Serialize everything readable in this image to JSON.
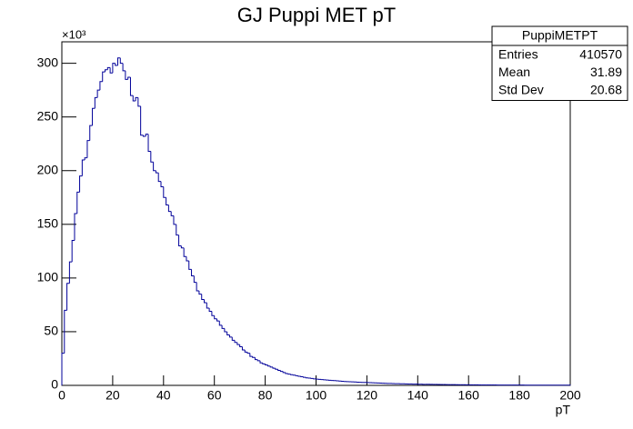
{
  "chart_data": {
    "type": "histogram",
    "title": "GJ Puppi MET pT",
    "xlabel": "pT",
    "y_multiplier": "×10³",
    "color": "#000099",
    "bins": [
      0,
      1,
      2,
      3,
      4,
      5,
      6,
      7,
      8,
      9,
      10,
      11,
      12,
      13,
      14,
      15,
      16,
      17,
      18,
      19,
      20,
      21,
      22,
      23,
      24,
      25,
      26,
      27,
      28,
      29,
      30,
      31,
      32,
      33,
      34,
      35,
      36,
      37,
      38,
      39,
      40,
      41,
      42,
      43,
      44,
      45,
      46,
      47,
      48,
      49,
      50,
      51,
      52,
      53,
      54,
      55,
      56,
      57,
      58,
      59,
      60,
      61,
      62,
      63,
      64,
      65,
      66,
      67,
      68,
      69,
      70,
      71,
      72,
      73,
      74,
      75,
      76,
      77,
      78,
      79,
      80,
      81,
      82,
      83,
      84,
      85,
      86,
      87,
      88,
      89,
      90,
      91,
      92,
      93,
      94,
      95,
      96,
      97,
      98,
      99,
      100,
      101,
      102,
      103,
      104,
      105,
      106,
      107,
      108,
      109,
      110,
      111,
      112,
      113,
      114,
      115,
      116,
      117,
      118,
      119,
      120,
      121,
      122,
      123,
      124,
      125,
      126,
      127,
      128,
      129,
      130,
      131,
      132,
      133,
      134,
      135,
      136,
      137,
      138,
      139,
      140,
      141,
      142,
      143,
      144,
      145,
      146,
      147,
      148,
      149,
      150,
      151,
      152,
      153,
      154,
      155,
      156,
      157,
      158,
      159,
      160,
      161,
      162,
      163,
      164,
      165,
      166,
      167,
      168,
      169,
      170,
      171,
      172,
      173,
      174,
      175,
      176,
      177,
      178,
      179,
      180,
      181,
      182,
      183,
      184,
      185,
      186,
      187,
      188,
      189,
      190,
      191,
      192,
      193,
      194,
      195,
      196,
      197,
      198,
      199,
      200
    ],
    "values": [
      30,
      70,
      95,
      115,
      135,
      160,
      180,
      195,
      210,
      212,
      228,
      242,
      258,
      268,
      275,
      283,
      292,
      294,
      296,
      291,
      300,
      298,
      305,
      300,
      293,
      285,
      287,
      270,
      265,
      268,
      260,
      233,
      232,
      234,
      218,
      208,
      200,
      198,
      190,
      185,
      175,
      168,
      162,
      158,
      150,
      140,
      130,
      128,
      120,
      116,
      108,
      102,
      96,
      88,
      85,
      80,
      77,
      72,
      69,
      65,
      62,
      60,
      56,
      53,
      50,
      47,
      45,
      42,
      40,
      38,
      36,
      33,
      31,
      30,
      27,
      26,
      24,
      23,
      21,
      20,
      19,
      18,
      17,
      16,
      15,
      14,
      13,
      12,
      11,
      10.5,
      10,
      9.5,
      9,
      8.5,
      8,
      7.5,
      7,
      6.8,
      6.5,
      6,
      5.8,
      5.6,
      5.4,
      5.2,
      5,
      4.8,
      4.6,
      4.4,
      4.2,
      4,
      3.8,
      3.6,
      3.5,
      3.4,
      3.3,
      3.2,
      3,
      2.9,
      2.8,
      2.7,
      2.6,
      2.5,
      2.4,
      2.3,
      2.2,
      2.1,
      2,
      1.9,
      1.8,
      1.8,
      1.7,
      1.6,
      1.6,
      1.5,
      1.5,
      1.4,
      1.3,
      1.3,
      1.2,
      1.2,
      1.1,
      1.1,
      1,
      1,
      1,
      0.9,
      0.9,
      0.9,
      0.8,
      0.8,
      0.8,
      0.7,
      0.7,
      0.7,
      0.7,
      0.6,
      0.6,
      0.6,
      0.6,
      0.5,
      0.5,
      0.5,
      0.5,
      0.5,
      0.4,
      0.4,
      0.4,
      0.4,
      0.4,
      0.4,
      0.4,
      0.3,
      0.3,
      0.3,
      0.3,
      0.3,
      0.3,
      0.3,
      0.3,
      0.3,
      0.3,
      0.3,
      0.2,
      0.2,
      0.2,
      0.2,
      0.2,
      0.2,
      0.2,
      0.2,
      0.2,
      0.2,
      0.2,
      0.2,
      0.2,
      0.2,
      0.2,
      0.2,
      0.2,
      0.2
    ],
    "xlim": [
      0,
      200
    ],
    "xticks": [
      0,
      20,
      40,
      60,
      80,
      100,
      120,
      140,
      160,
      180,
      200
    ],
    "ylim": [
      0,
      320
    ],
    "yticks": [
      0,
      50,
      100,
      150,
      200,
      250,
      300
    ],
    "stats": {
      "title": "PuppiMETPT",
      "rows": [
        [
          "Entries",
          410570
        ],
        [
          "Mean",
          31.89
        ],
        [
          "Std Dev",
          20.68
        ]
      ]
    }
  }
}
